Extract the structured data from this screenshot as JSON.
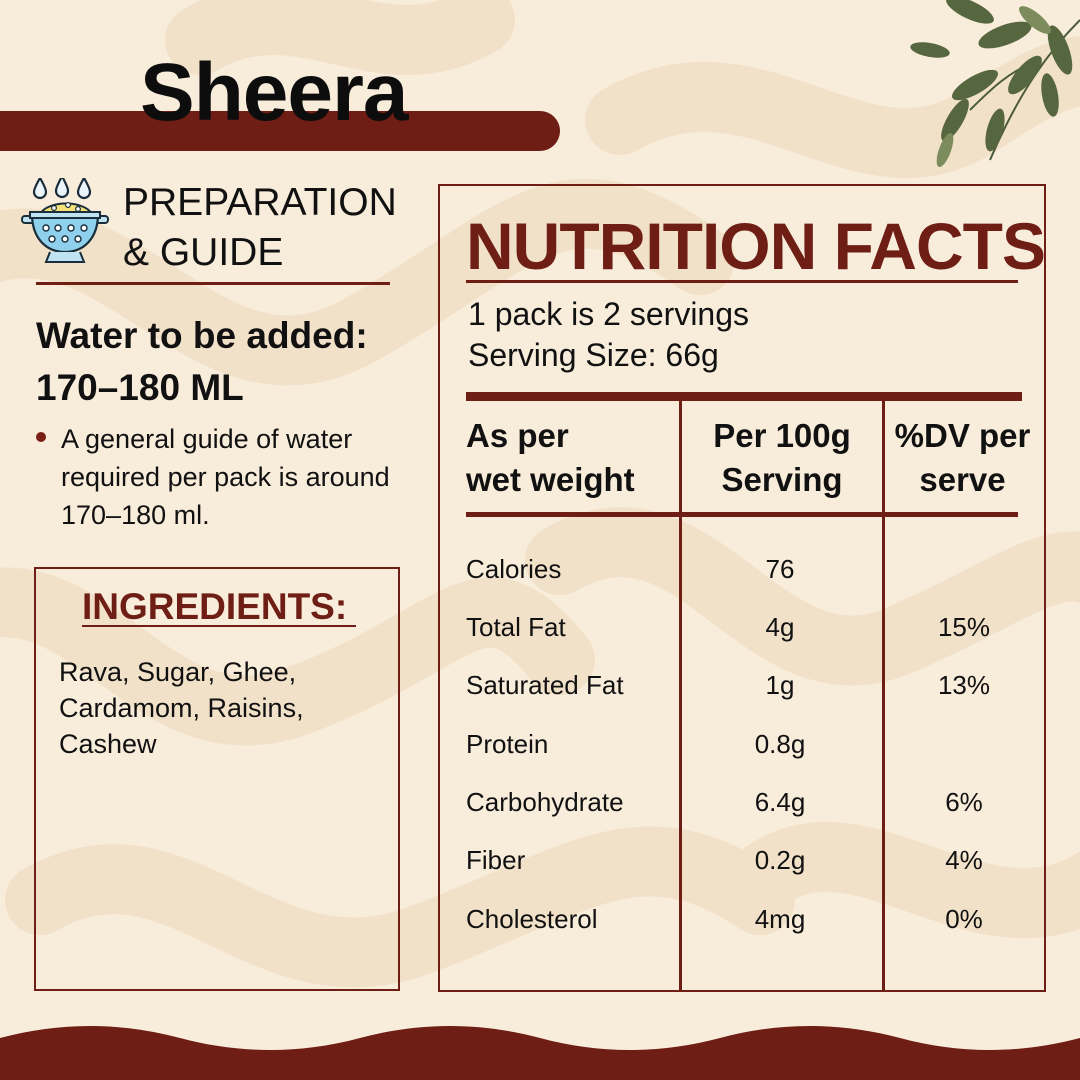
{
  "title": "Sheera",
  "preparation": {
    "heading_line1": "PREPARATION",
    "heading_line2": "& GUIDE",
    "icon": "colander-icon",
    "water_title_line1": "Water to be added:",
    "water_title_line2": "170–180 ML",
    "bullet": "A general guide of water required per pack is around 170–180 ml."
  },
  "ingredients": {
    "title": "INGREDIENTS:",
    "text": "Rava, Sugar, Ghee, Cardamom, Raisins, Cashew"
  },
  "nutrition": {
    "title": "NUTRITION FACTS",
    "servings_line1": "1 pack is 2 servings",
    "servings_line2": "Serving Size: 66g",
    "headers": {
      "col1_line1": "As per",
      "col1_line2": "wet weight",
      "col2_line1": "Per 100g",
      "col2_line2": "Serving",
      "col3_line1": "%DV per",
      "col3_line2": "serve"
    },
    "rows": [
      {
        "name": "Calories",
        "per100g": "76",
        "dv": ""
      },
      {
        "name": "Total Fat",
        "per100g": "4g",
        "dv": "15%"
      },
      {
        "name": "Saturated Fat",
        "per100g": "1g",
        "dv": "13%"
      },
      {
        "name": "Protein",
        "per100g": "0.8g",
        "dv": ""
      },
      {
        "name": "Carbohydrate",
        "per100g": "6.4g",
        "dv": "6%"
      },
      {
        "name": "Fiber",
        "per100g": "0.2g",
        "dv": "4%"
      },
      {
        "name": "Cholesterol",
        "per100g": "4mg",
        "dv": "0%"
      }
    ]
  },
  "colors": {
    "accent": "#6e1e14",
    "background": "#f8ecdb"
  },
  "decorations": {
    "leaves": "leaves-icon"
  }
}
